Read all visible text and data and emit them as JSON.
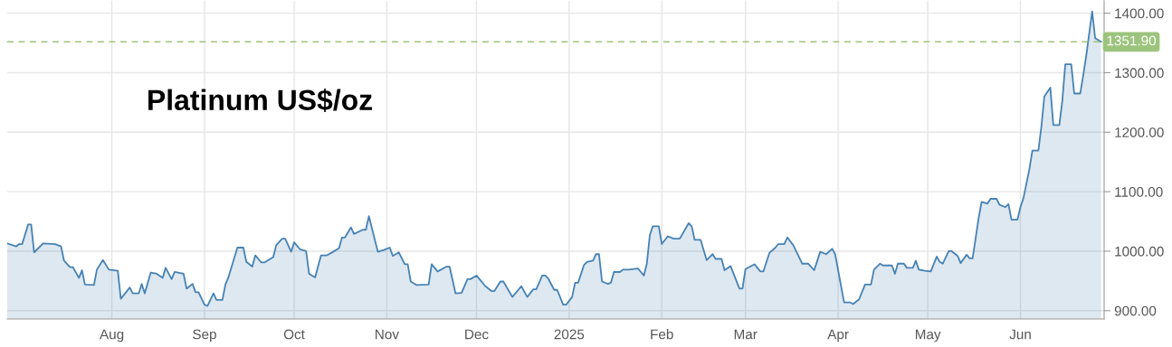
{
  "chart_data": {
    "type": "area",
    "title": "Platinum US$/oz",
    "x": [
      "2024-06-27",
      "2024-06-30",
      "2024-07-01",
      "2024-07-02",
      "2024-07-04",
      "2024-07-05",
      "2024-07-06",
      "2024-07-09",
      "2024-07-13",
      "2024-07-15",
      "2024-07-16",
      "2024-07-18",
      "2024-07-19",
      "2024-07-21",
      "2024-07-22",
      "2024-07-23",
      "2024-07-26",
      "2024-07-27",
      "2024-07-29",
      "2024-07-31",
      "2024-08-03",
      "2024-08-04",
      "2024-08-07",
      "2024-08-08",
      "2024-08-10",
      "2024-08-11",
      "2024-08-12",
      "2024-08-14",
      "2024-08-16",
      "2024-08-18",
      "2024-08-19",
      "2024-08-21",
      "2024-08-22",
      "2024-08-25",
      "2024-08-26",
      "2024-08-28",
      "2024-08-29",
      "2024-08-30",
      "2024-09-01",
      "2024-09-02",
      "2024-09-04",
      "2024-09-05",
      "2024-09-07",
      "2024-09-08",
      "2024-09-09",
      "2024-09-12",
      "2024-09-14",
      "2024-09-15",
      "2024-09-17",
      "2024-09-18",
      "2024-09-20",
      "2024-09-21",
      "2024-09-24",
      "2024-09-25",
      "2024-09-27",
      "2024-09-28",
      "2024-09-30",
      "2024-10-01",
      "2024-10-03",
      "2024-10-05",
      "2024-10-06",
      "2024-10-08",
      "2024-10-10",
      "2024-10-12",
      "2024-10-14",
      "2024-10-16",
      "2024-10-17",
      "2024-10-18",
      "2024-10-20",
      "2024-10-21",
      "2024-10-24",
      "2024-10-25",
      "2024-10-26",
      "2024-10-29",
      "2024-10-31",
      "2024-11-02",
      "2024-11-03",
      "2024-11-05",
      "2024-11-07",
      "2024-11-08",
      "2024-11-09",
      "2024-11-11",
      "2024-11-15",
      "2024-11-16",
      "2024-11-18",
      "2024-11-21",
      "2024-11-22",
      "2024-11-24",
      "2024-11-26",
      "2024-11-28",
      "2024-11-29",
      "2024-12-01",
      "2024-12-04",
      "2024-12-06",
      "2024-12-07",
      "2024-12-09",
      "2024-12-10",
      "2024-12-13",
      "2024-12-16",
      "2024-12-18",
      "2024-12-20",
      "2024-12-21",
      "2024-12-23",
      "2024-12-24",
      "2024-12-25",
      "2024-12-27",
      "2024-12-28",
      "2024-12-30",
      "2024-12-31",
      "2025-01-02",
      "2025-01-03",
      "2025-01-04",
      "2025-01-06",
      "2025-01-07",
      "2025-01-09",
      "2025-01-10",
      "2025-01-11",
      "2025-01-12",
      "2025-01-14",
      "2025-01-15",
      "2025-01-16",
      "2025-01-18",
      "2025-01-19",
      "2025-01-21",
      "2025-01-24",
      "2025-01-26",
      "2025-01-27",
      "2025-01-28",
      "2025-01-29",
      "2025-01-31",
      "2025-02-01",
      "2025-02-03",
      "2025-02-05",
      "2025-02-07",
      "2025-02-10",
      "2025-02-11",
      "2025-02-12",
      "2025-02-14",
      "2025-02-16",
      "2025-02-18",
      "2025-02-19",
      "2025-02-21",
      "2025-02-22",
      "2025-02-24",
      "2025-02-27",
      "2025-02-28",
      "2025-03-01",
      "2025-03-04",
      "2025-03-06",
      "2025-03-07",
      "2025-03-09",
      "2025-03-11",
      "2025-03-12",
      "2025-03-14",
      "2025-03-15",
      "2025-03-17",
      "2025-03-20",
      "2025-03-22",
      "2025-03-24",
      "2025-03-26",
      "2025-03-28",
      "2025-03-30",
      "2025-03-31",
      "2025-04-03",
      "2025-04-05",
      "2025-04-06",
      "2025-04-08",
      "2025-04-10",
      "2025-04-12",
      "2025-04-13",
      "2025-04-15",
      "2025-04-16",
      "2025-04-19",
      "2025-04-20",
      "2025-04-21",
      "2025-04-23",
      "2025-04-24",
      "2025-04-26",
      "2025-04-27",
      "2025-04-28",
      "2025-04-30",
      "2025-05-02",
      "2025-05-04",
      "2025-05-05",
      "2025-05-06",
      "2025-05-08",
      "2025-05-09",
      "2025-05-11",
      "2025-05-12",
      "2025-05-14",
      "2025-05-15",
      "2025-05-16",
      "2025-05-18",
      "2025-05-19",
      "2025-05-21",
      "2025-05-22",
      "2025-05-24",
      "2025-05-25",
      "2025-05-27",
      "2025-05-28",
      "2025-05-29",
      "2025-05-31",
      "2025-06-01",
      "2025-06-02",
      "2025-06-04",
      "2025-06-05",
      "2025-06-07",
      "2025-06-08",
      "2025-06-09",
      "2025-06-11",
      "2025-06-12",
      "2025-06-14",
      "2025-06-15",
      "2025-06-16",
      "2025-06-18",
      "2025-06-19",
      "2025-06-21",
      "2025-06-22",
      "2025-06-23",
      "2025-06-25",
      "2025-06-26",
      "2025-06-28"
    ],
    "series": [
      {
        "color": "#4682b4",
        "values": [
          1013,
          1008,
          1012,
          1012,
          1045,
          1045,
          998,
          1013,
          1012,
          1008,
          984,
          973,
          973,
          955,
          968,
          944,
          943,
          969,
          985,
          969,
          967,
          920,
          939,
          929,
          929,
          945,
          929,
          964,
          962,
          955,
          972,
          953,
          965,
          962,
          937,
          945,
          931,
          931,
          910,
          908,
          929,
          918,
          918,
          944,
          956,
          1006,
          1006,
          982,
          974,
          993,
          981,
          981,
          990,
          1010,
          1021,
          1021,
          999,
          1015,
          1003,
          1000,
          962,
          956,
          993,
          993,
          999,
          1005,
          1023,
          1023,
          1040,
          1029,
          1036,
          1036,
          1059,
          999,
          1002,
          1006,
          992,
          998,
          978,
          978,
          949,
          943,
          944,
          978,
          966,
          974,
          974,
          929,
          930,
          953,
          953,
          959,
          941,
          933,
          933,
          949,
          949,
          923,
          941,
          923,
          936,
          936,
          959,
          959,
          954,
          935,
          935,
          910,
          910,
          923,
          947,
          947,
          977,
          982,
          984,
          995,
          995,
          949,
          945,
          947,
          965,
          965,
          969,
          969,
          971,
          959,
          979,
          1027,
          1042,
          1042,
          1012,
          1025,
          1021,
          1021,
          1047,
          1042,
          1019,
          1019,
          985,
          995,
          987,
          987,
          968,
          975,
          937,
          937,
          970,
          978,
          966,
          966,
          997,
          1006,
          1012,
          1012,
          1023,
          1010,
          979,
          979,
          968,
          999,
          995,
          1004,
          995,
          914,
          914,
          911,
          919,
          944,
          944,
          969,
          979,
          976,
          976,
          962,
          979,
          979,
          972,
          972,
          984,
          969,
          967,
          966,
          991,
          982,
          979,
          1000,
          1000,
          992,
          980,
          994,
          988,
          988,
          1055,
          1083,
          1080,
          1088,
          1088,
          1078,
          1074,
          1079,
          1053,
          1053,
          1074,
          1089,
          1138,
          1169,
          1169,
          1209,
          1260,
          1275,
          1212,
          1212,
          1252,
          1314,
          1314,
          1265,
          1265,
          1295,
          1328,
          1403,
          1358,
          1351.9
        ]
      }
    ],
    "xlim": [
      "2024-06-27",
      "2025-06-29"
    ],
    "xticks": [
      {
        "value": "2024-08-01",
        "label": "Aug"
      },
      {
        "value": "2024-09-01",
        "label": "Sep"
      },
      {
        "value": "2024-10-01",
        "label": "Oct"
      },
      {
        "value": "2024-11-01",
        "label": "Nov"
      },
      {
        "value": "2024-12-01",
        "label": "Dec"
      },
      {
        "value": "2025-01-01",
        "label": "2025"
      },
      {
        "value": "2025-02-01",
        "label": "Feb"
      },
      {
        "value": "2025-03-01",
        "label": "Mar"
      },
      {
        "value": "2025-04-01",
        "label": "Apr"
      },
      {
        "value": "2025-05-01",
        "label": "May"
      },
      {
        "value": "2025-06-01",
        "label": "Jun"
      }
    ],
    "ylim": [
      886,
      1421
    ],
    "yticks": [
      {
        "value": 900,
        "label": "900.00"
      },
      {
        "value": 1000,
        "label": "1000.00"
      },
      {
        "value": 1100,
        "label": "1100.00"
      },
      {
        "value": 1200,
        "label": "1200.00"
      },
      {
        "value": 1300,
        "label": "1300.00"
      },
      {
        "value": 1400,
        "label": "1400.00"
      }
    ],
    "ref_lines": [
      {
        "axis": "y",
        "value": 1351.9,
        "label": "1351.90",
        "color": "#9cc47e",
        "line_style": "dashed"
      }
    ],
    "grid": true
  }
}
